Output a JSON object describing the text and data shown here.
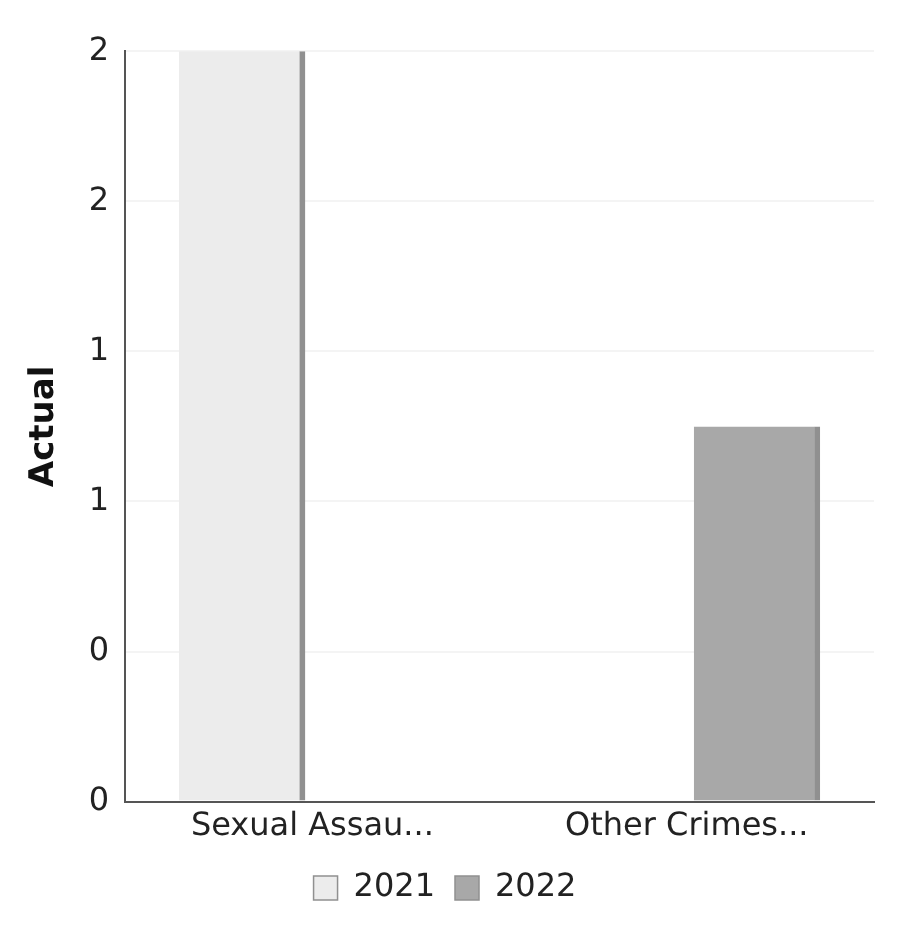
{
  "chart_data": {
    "type": "bar",
    "ylabel": "Actual",
    "categories": [
      "Sexual Assau...",
      "Other Crimes..."
    ],
    "series": [
      {
        "name": "2021",
        "color": "#ececec",
        "values": [
          2,
          0
        ]
      },
      {
        "name": "2022",
        "color": "#a8a8a8",
        "values": [
          0,
          1
        ]
      }
    ],
    "ylim": [
      0,
      2
    ],
    "yticks": [
      {
        "value": 0,
        "label": "0"
      },
      {
        "value": 0.4,
        "label": "0"
      },
      {
        "value": 0.8,
        "label": "1"
      },
      {
        "value": 1.2,
        "label": "1"
      },
      {
        "value": 1.6,
        "label": "2"
      },
      {
        "value": 2,
        "label": "2"
      }
    ],
    "grid": "y",
    "legend": "bottom"
  }
}
